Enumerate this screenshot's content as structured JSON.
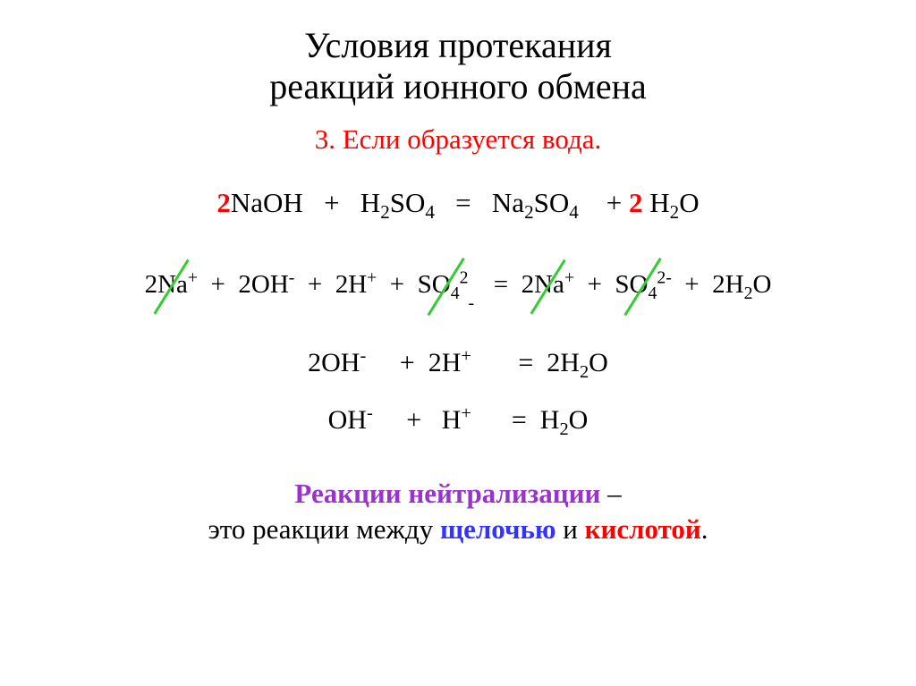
{
  "colors": {
    "text": "#000000",
    "background": "#ffffff",
    "red": "#ff0000",
    "green_strike": "#33cc33",
    "blue": "#3333ff",
    "purple": "#9933cc"
  },
  "fonts": {
    "family": "Times New Roman",
    "title_size_pt": 40,
    "subtitle_size_pt": 31,
    "equation_size_pt": 31,
    "equation2_size_pt": 29,
    "footer_size_pt": 31
  },
  "title_line1": "Условия протекания",
  "title_line2": "реакций ионного обмена",
  "subtitle": "3. Если образуется вода.",
  "eq1": {
    "coeff1": "2",
    "r1": "NaOH",
    "plus": "+",
    "r2_main": "H",
    "r2_sub1": "2",
    "r2_tail": "SO",
    "r2_sub2": "4",
    "eq": "=",
    "p1_main": "Na",
    "p1_sub1": "2",
    "p1_tail": "SO",
    "p1_sub2": "4",
    "coeff2": "2",
    "p2_main": "H",
    "p2_sub": "2",
    "p2_tail": "O"
  },
  "eq2": {
    "t1": "2Na",
    "t1_sup": "+",
    "plus": "+",
    "t2": "2OH",
    "t2_sup": "-",
    "t3": "2H",
    "t3_sup": "+",
    "t4": "SO",
    "t4_sub": "4",
    "t4_sup": "2",
    "t4_low": "-",
    "eq": "=",
    "t5": "2Na",
    "t5_sup": "+",
    "t6": "SO",
    "t6_sub": "4",
    "t6_sup": "2-",
    "t7": "2H",
    "t7_sub": "2",
    "t7_tail": "O"
  },
  "eq3": {
    "t1": "2OH",
    "t1_sup": "-",
    "plus": "+",
    "t2": "2H",
    "t2_sup": "+",
    "eq": "=",
    "t3": "2H",
    "t3_sub": "2",
    "t3_tail": "O"
  },
  "eq4": {
    "t1": "OH",
    "t1_sup": "-",
    "plus": "+",
    "t2": "H",
    "t2_sup": "+",
    "eq": "=",
    "t3": "H",
    "t3_sub": "2",
    "t3_tail": "O"
  },
  "footer": {
    "line1_purple": "Реакции нейтрализации",
    "line1_dash": " –",
    "line2_pre": "это реакции между ",
    "line2_blue": "щелочью",
    "line2_and": " и ",
    "line2_red": "кислотой",
    "line2_period": "."
  }
}
